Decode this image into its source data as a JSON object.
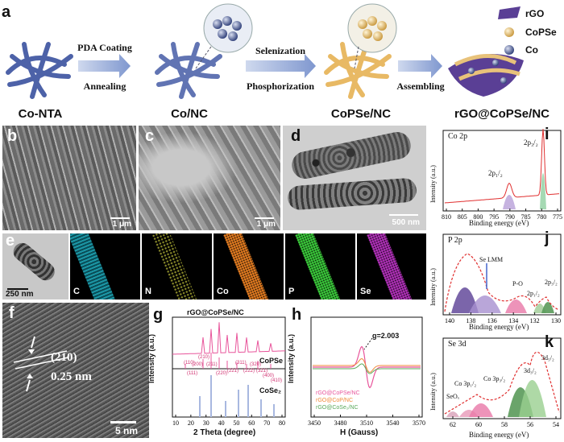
{
  "panels": {
    "a": "a",
    "b": "b",
    "c": "c",
    "d": "d",
    "e": "e",
    "f": "f",
    "g": "g",
    "h": "h",
    "i": "i",
    "j": "j",
    "k": "k"
  },
  "scheme": {
    "stages": [
      "Co-NTA",
      "Co/NC",
      "CoPSe/NC",
      "rGO@CoPSe/NC"
    ],
    "step1_top": "PDA Coating",
    "step1_bottom": "Annealing",
    "step2_top": "Selenization",
    "step2_bottom": "Phosphorization",
    "step3": "Assembling",
    "legend": [
      "rGO",
      "CoPSe",
      "Co"
    ]
  },
  "sem": {
    "b_scale": "1 μm",
    "c_scale": "1 μm",
    "d_scale": "500 nm"
  },
  "mapping": {
    "scale": "250 nm",
    "labels": [
      "C",
      "N",
      "Co",
      "P",
      "Se"
    ]
  },
  "hrtem": {
    "plane": "(210)",
    "dspacing": "0.25 nm",
    "scale": "5 nm"
  },
  "xrd": {
    "title": "rGO@CoPSe/NC",
    "ref1": "CoPSe",
    "ref2": "CoSe₂",
    "ylabel": "Intensity (a.u.)",
    "xlabel": "2 Theta (degree)",
    "xticks": [
      "10",
      "20",
      "30",
      "40",
      "50",
      "60",
      "70",
      "80"
    ],
    "hkl": [
      "(110)",
      "(111)",
      "(200)",
      "(210)",
      "(211)",
      "(220)",
      "(221)",
      "(311)",
      "(222)",
      "(320)",
      "(321)",
      "(400)",
      "(410)"
    ]
  },
  "epr": {
    "g": "g=2.003",
    "ylabel": "Intensity (a.u.)",
    "xlabel": "H (Gauss)",
    "xticks": [
      "3450",
      "3480",
      "3510",
      "3540",
      "3570"
    ],
    "legend": [
      "rGO@CoPSe/NC",
      "rGO@CoP/NC",
      "rGO@CoSe₂/NC"
    ]
  },
  "xps_co": {
    "title": "Co 2p",
    "peak1": "2p₁/₂",
    "peak2": "2p₃/₂",
    "ylabel": "Intensity (a.u.)",
    "xlabel": "Binding energy (eV)",
    "xticks": [
      "810",
      "805",
      "800",
      "795",
      "790",
      "785",
      "780",
      "775"
    ]
  },
  "xps_p": {
    "title": "P 2p",
    "se": "Se LMM",
    "po": "P-O",
    "p12": "2p₁/₂",
    "p32": "2p₃/₂",
    "ylabel": "Intensity (a.u.)",
    "xlabel": "Binding energy (eV)",
    "xticks": [
      "140",
      "138",
      "136",
      "134",
      "132",
      "130"
    ]
  },
  "xps_se": {
    "title": "Se 3d",
    "seox": "SeOₓ",
    "co3p12": "Co 3p₁/₂",
    "co3p32": "Co 3p₃/₂",
    "d32": "3d₃/₂",
    "d52": "3d₅/₂",
    "ylabel": "Intensity (a.u.)",
    "xlabel": "Binding energy (eV)",
    "xticks": [
      "62",
      "60",
      "58",
      "56",
      "54"
    ]
  },
  "colors": {
    "pink": "#e8559b",
    "orange": "#f08a3a",
    "green": "#5aa85a",
    "blue": "#5a6fb8",
    "gold": "#e8c27a",
    "purple": "#5a3f95",
    "cyan": "#2bbfd0",
    "magenta": "#c040c0"
  }
}
